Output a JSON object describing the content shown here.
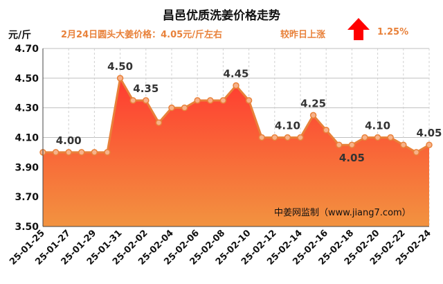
{
  "header": {
    "title": "昌邑优质洗姜价格走势",
    "unit": "元/斤",
    "subtitle": "2月24日圆头大姜价格：4.05元/斤左右",
    "change_label": "较昨日上涨",
    "change_pct": "1.25%",
    "change_direction_icon": "up-arrow-icon"
  },
  "watermark": "中姜网监制（www.jiang7.com）",
  "colors": {
    "accent_orange": "#e8813a",
    "fill_top": "#ff3b30",
    "fill_bottom": "#f29340",
    "arrow_red": "#ff0000"
  },
  "chart_data": {
    "type": "area",
    "x": [
      "25-01-25",
      "25-01-26",
      "25-01-27",
      "25-01-28",
      "25-01-29",
      "25-01-30",
      "25-01-31",
      "25-02-01",
      "25-02-02",
      "25-02-03",
      "25-02-04",
      "25-02-05",
      "25-02-06",
      "25-02-07",
      "25-02-08",
      "25-02-09",
      "25-02-10",
      "25-02-11",
      "25-02-12",
      "25-02-13",
      "25-02-14",
      "25-02-15",
      "25-02-16",
      "25-02-17",
      "25-02-18",
      "25-02-19",
      "25-02-20",
      "25-02-21",
      "25-02-22",
      "25-02-23",
      "25-02-24"
    ],
    "x_tick_labels": [
      "25-01-25",
      "25-01-27",
      "25-01-29",
      "25-01-31",
      "25-02-02",
      "25-02-04",
      "25-02-06",
      "25-02-08",
      "25-02-10",
      "25-02-12",
      "25-02-14",
      "25-02-16",
      "25-02-18",
      "25-02-20",
      "25-02-22",
      "25-02-24"
    ],
    "series": [
      {
        "values": [
          4.0,
          4.0,
          4.0,
          4.0,
          4.0,
          4.0,
          4.5,
          4.35,
          4.35,
          4.2,
          4.3,
          4.3,
          4.35,
          4.35,
          4.35,
          4.45,
          4.35,
          4.1,
          4.1,
          4.1,
          4.1,
          4.25,
          4.15,
          4.05,
          4.05,
          4.1,
          4.1,
          4.1,
          4.05,
          4.0,
          4.05
        ]
      }
    ],
    "data_labels": [
      {
        "index": 2,
        "text": "4.00"
      },
      {
        "index": 6,
        "text": "4.50"
      },
      {
        "index": 8,
        "text": "4.35"
      },
      {
        "index": 15,
        "text": "4.45"
      },
      {
        "index": 19,
        "text": "4.10"
      },
      {
        "index": 21,
        "text": "4.25"
      },
      {
        "index": 24,
        "text": "4.05"
      },
      {
        "index": 26,
        "text": "4.10"
      },
      {
        "index": 30,
        "text": "4.05"
      }
    ],
    "y_ticks": [
      "3.50",
      "3.70",
      "3.90",
      "4.10",
      "4.30",
      "4.50",
      "4.70"
    ],
    "ylim": [
      3.5,
      4.7
    ],
    "grid": true,
    "legend": "none"
  }
}
